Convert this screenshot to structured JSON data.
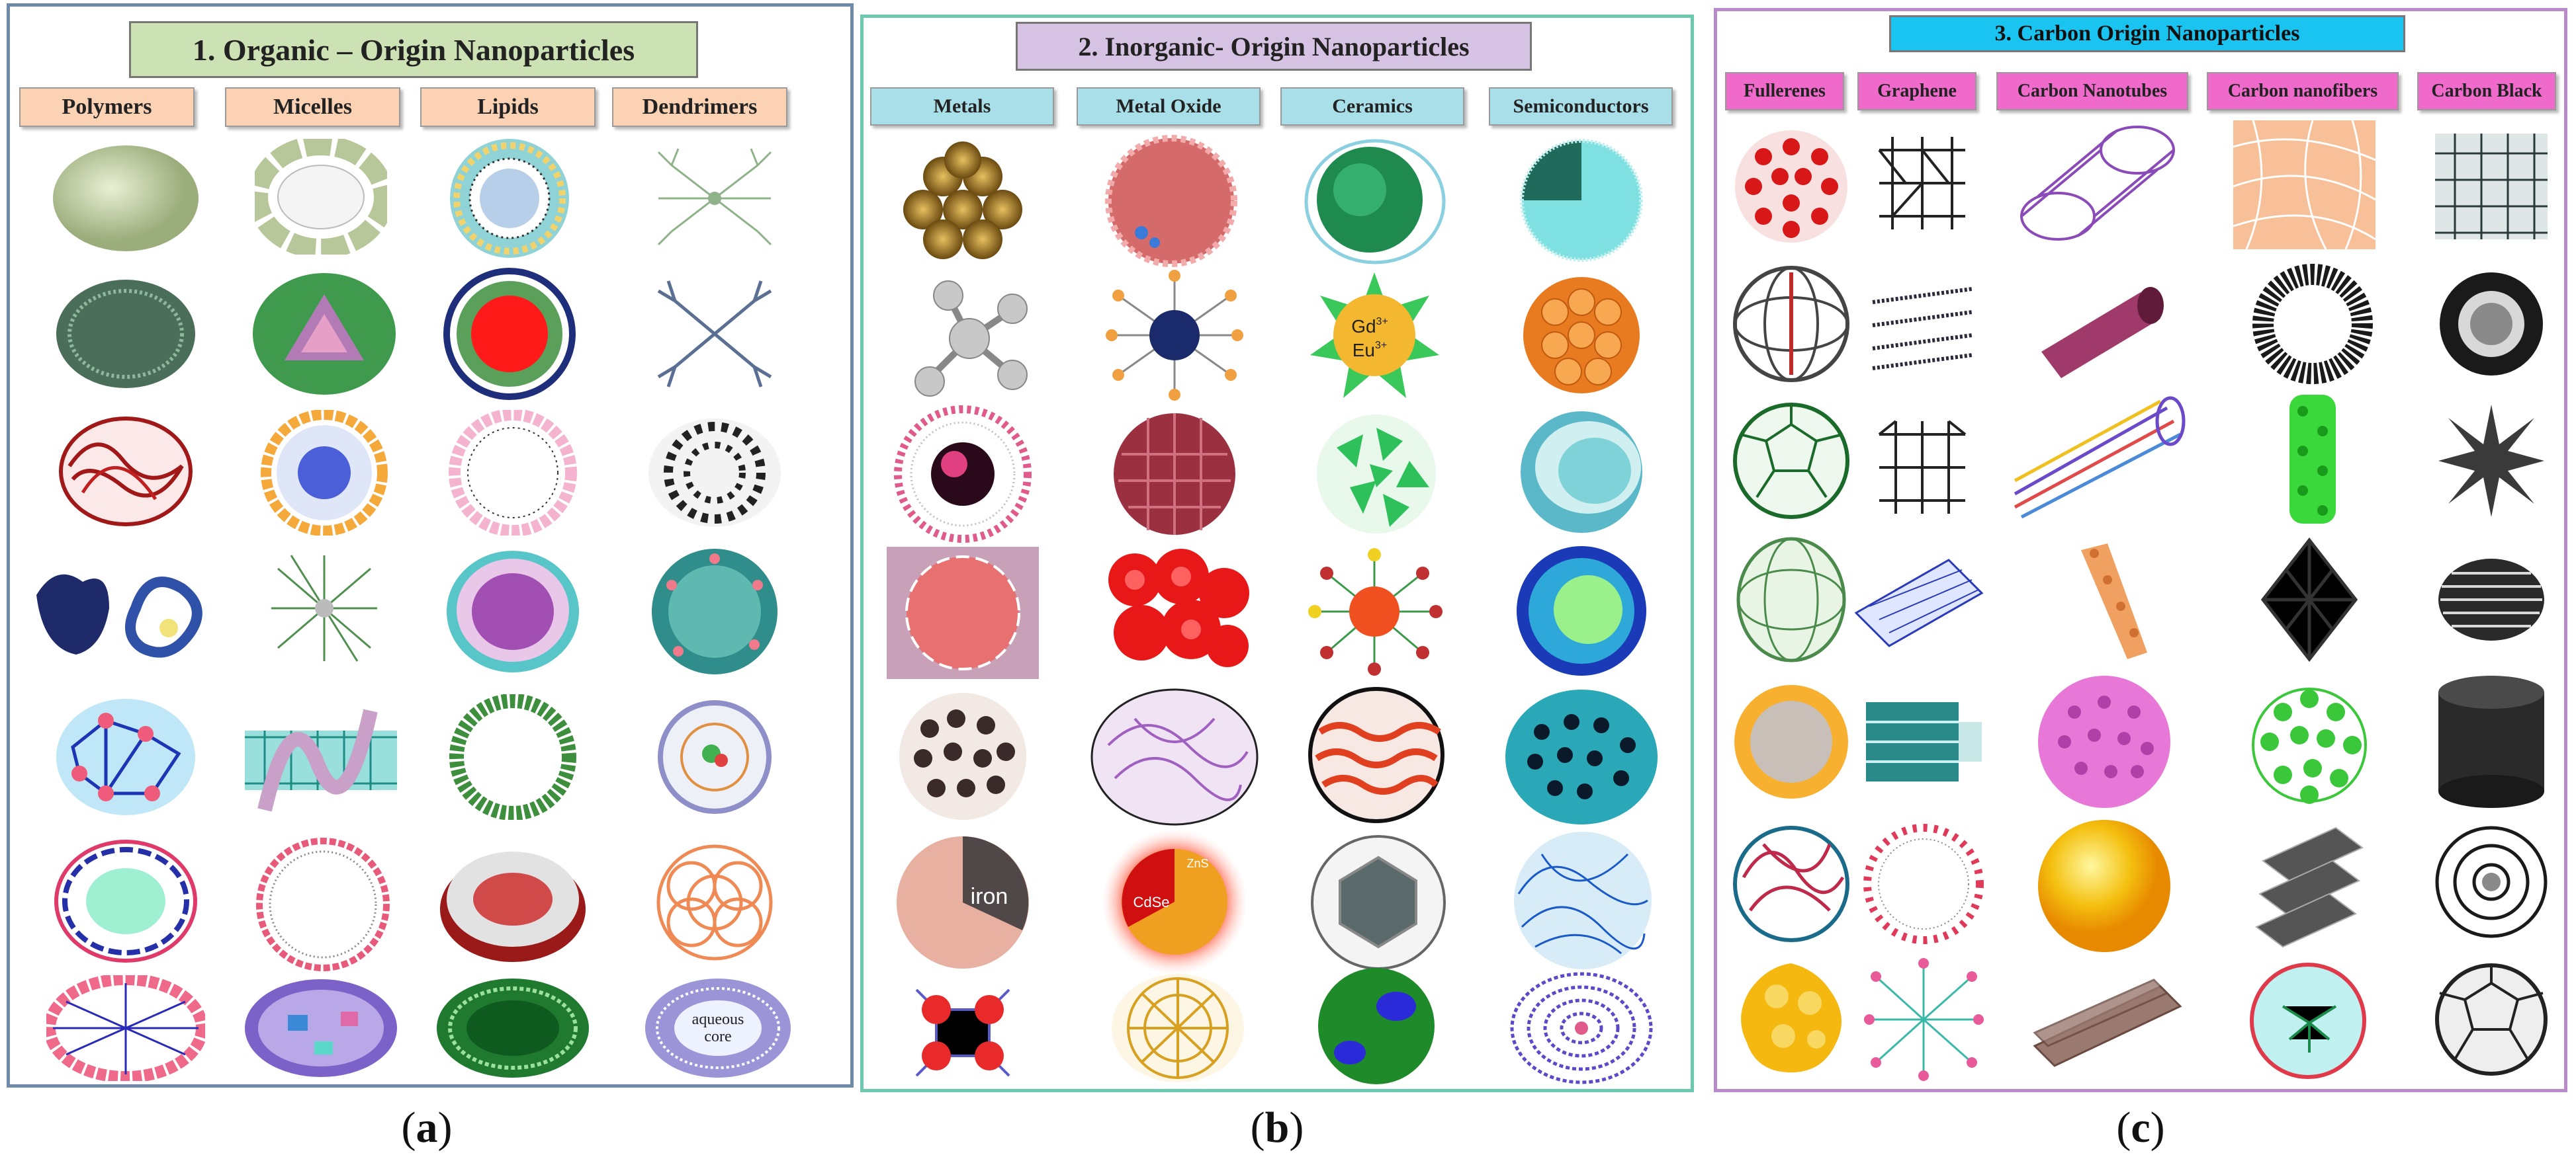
{
  "panels": [
    {
      "title": "1. Organic – Origin Nanoparticles",
      "columns": [
        "Polymers",
        "Micelles",
        "Lipids",
        "Dendrimers"
      ],
      "caption_letter": "a",
      "accent": "#cde2b4"
    },
    {
      "title": "2. Inorganic- Origin Nanoparticles",
      "columns": [
        "Metals",
        "Metal Oxide",
        "Ceramics",
        "Semiconductors"
      ],
      "caption_letter": "b",
      "accent": "#d6c3e3"
    },
    {
      "title": "3. Carbon Origin Nanoparticles",
      "columns": [
        "Fullerenes",
        "Graphene",
        "Carbon Nanotubes",
        "Carbon nanofibers",
        "Carbon Black"
      ],
      "caption_letter": "c",
      "accent": "#19c4f0"
    }
  ],
  "illustration_labels": {
    "ion_gd": "Gd",
    "ion_eu": "Eu",
    "ion_charge": "3+",
    "iron": "iron",
    "zns": "ZnS",
    "cdse": "CdSe",
    "aqueous_core_line1": "aqueous",
    "aqueous_core_line2": "core"
  },
  "colors": {
    "panel_a_border": "#6f8aa8",
    "panel_b_border": "#6cc8ae",
    "panel_c_border": "#b98ac9",
    "organic_header": "#fbd2b4",
    "inorganic_header": "#a9dfe8",
    "carbon_header": "#f06acb"
  }
}
